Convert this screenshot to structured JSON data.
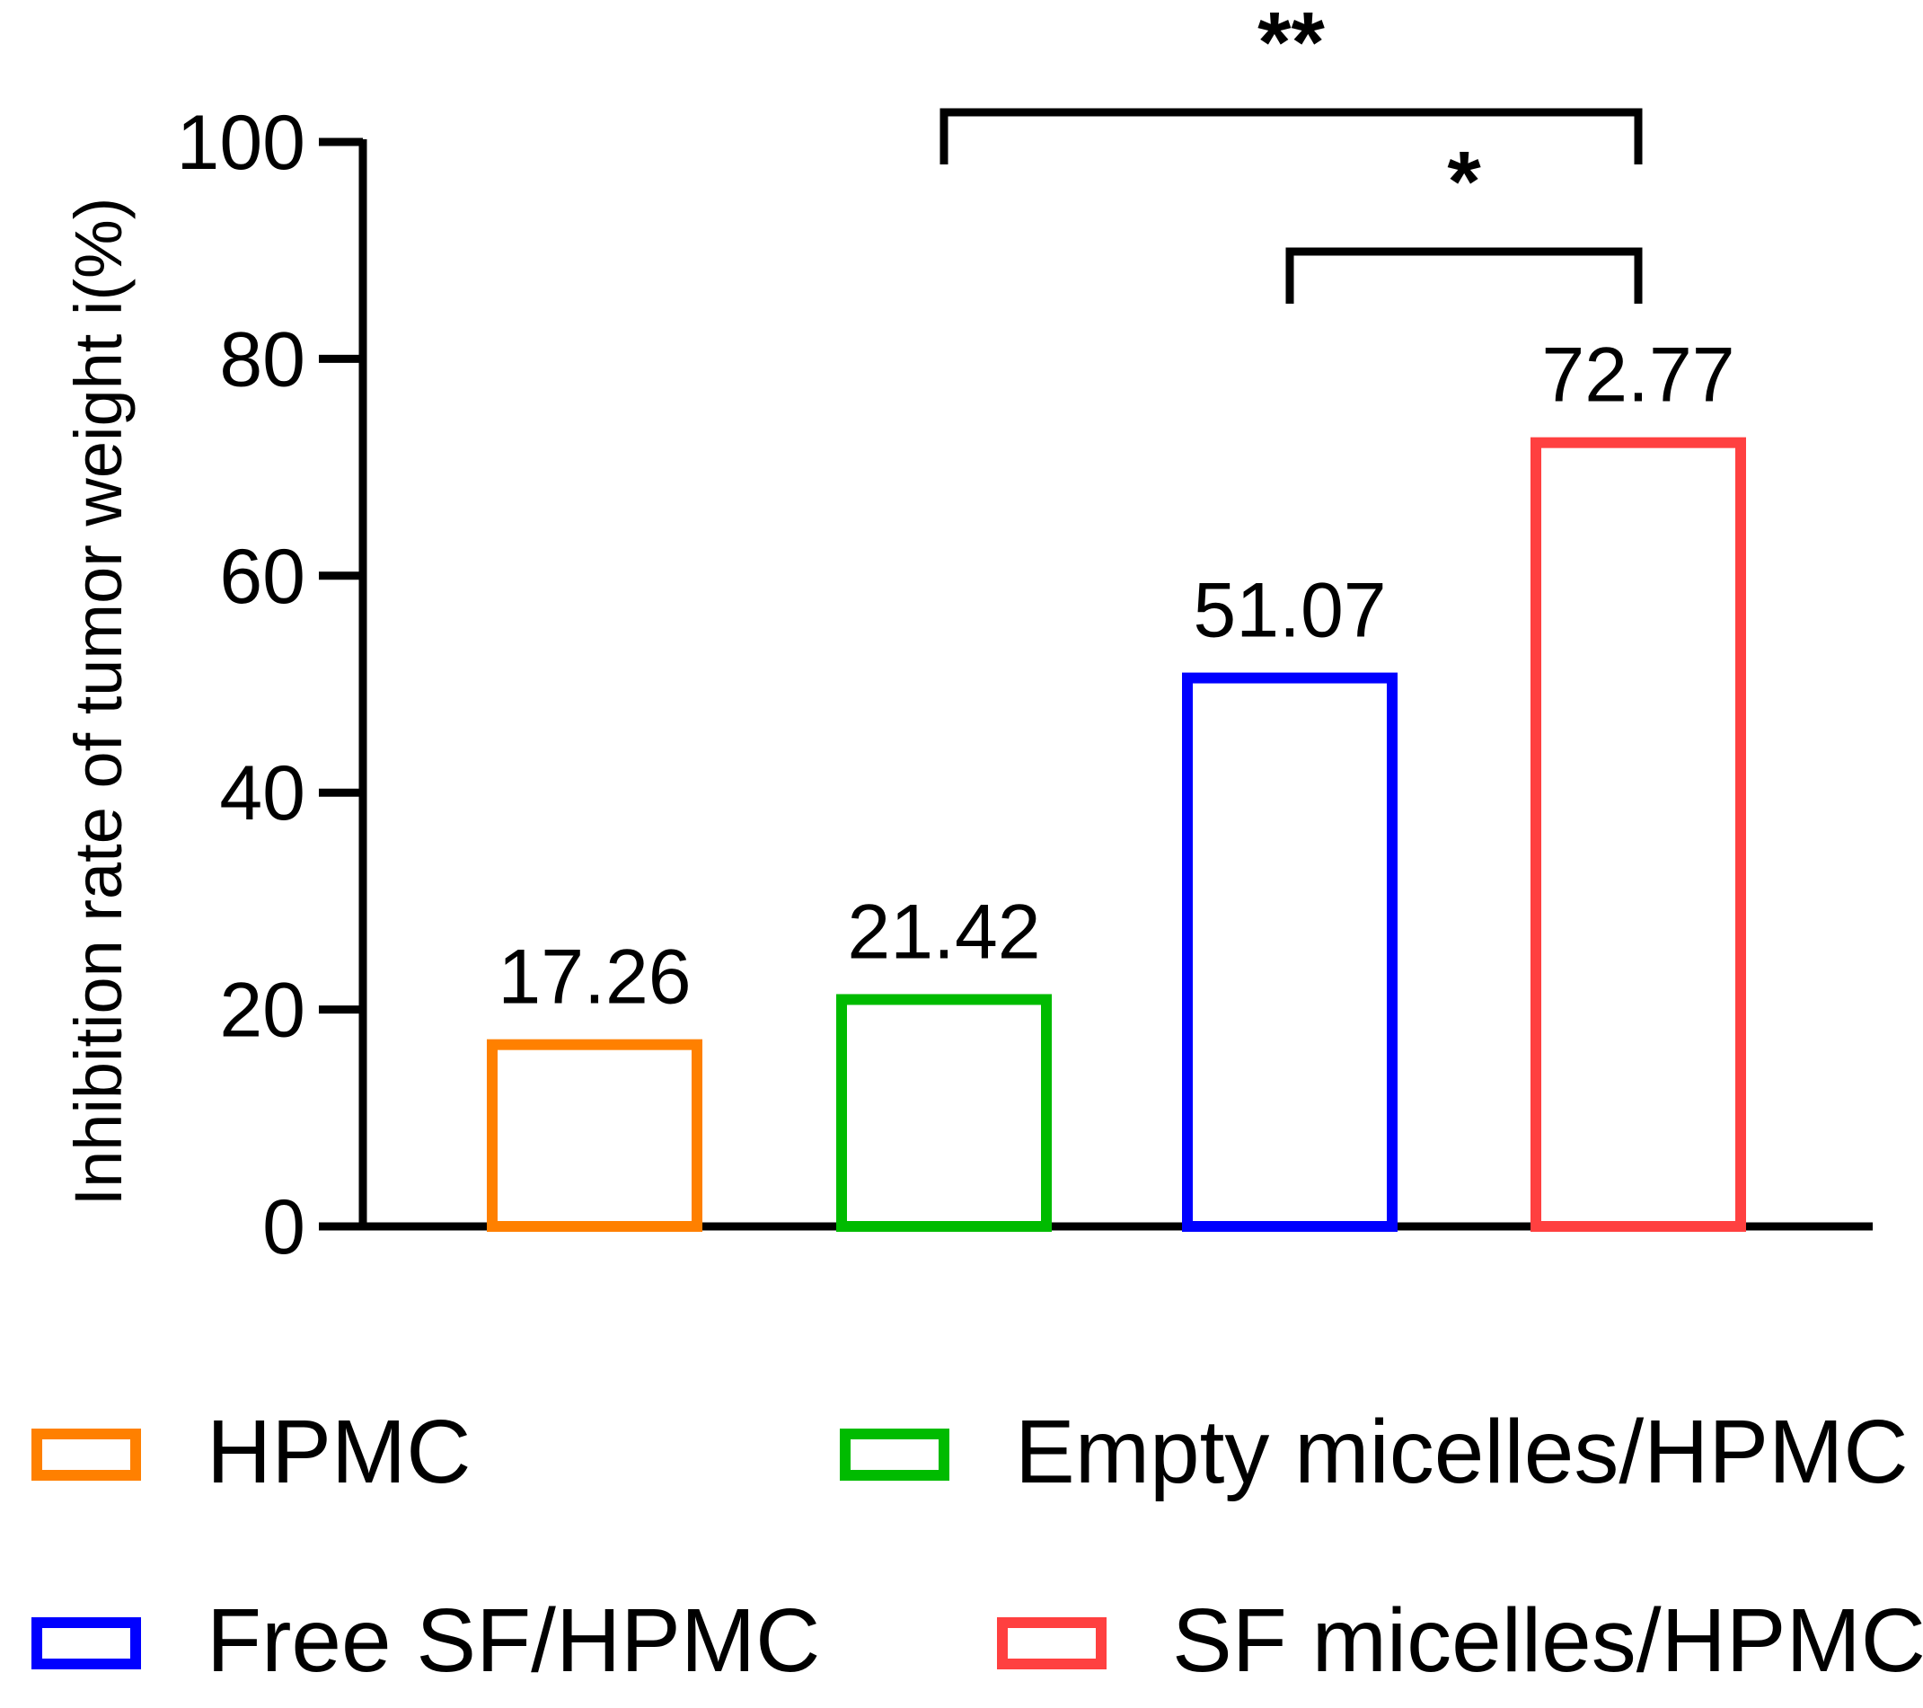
{
  "chart_data": {
    "type": "bar",
    "title": "",
    "xlabel": "",
    "ylabel": "Inhibition rate of tumor weight i(%)",
    "ylim": [
      0,
      100
    ],
    "yticks": [
      0,
      20,
      40,
      60,
      80,
      100
    ],
    "grid": false,
    "legend_position": "bottom",
    "categories": [
      "HPMC",
      "Empty micelles/HPMC",
      "Free SF/HPMC",
      "SF micelles/HPMC"
    ],
    "values": [
      17.26,
      21.42,
      51.07,
      72.77
    ],
    "value_labels": [
      "17.26",
      "21.42",
      "51.07",
      "72.77"
    ],
    "colors": [
      "#ff8000",
      "#00bb00",
      "#0000ff",
      "#ff4040"
    ],
    "bar_style": "outline",
    "significance": [
      {
        "from": 1,
        "to": 3,
        "label": "**"
      },
      {
        "from": 2,
        "to": 3,
        "label": "*"
      }
    ]
  }
}
